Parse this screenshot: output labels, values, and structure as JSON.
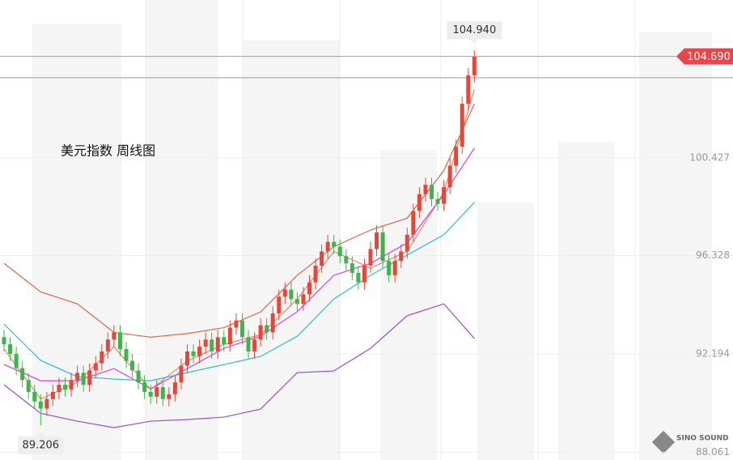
{
  "chart_data": {
    "type": "candlestick",
    "title": "美元指数 周线图",
    "open": [
      92.9,
      92.6,
      92.2,
      91.6,
      91.1,
      90.6,
      90.2,
      89.9,
      90.3,
      90.6,
      90.9,
      90.7,
      91.1,
      91.4,
      90.9,
      91.5,
      91.8,
      92.3,
      92.8,
      93.1,
      92.4,
      91.9,
      91.5,
      91.0,
      90.6,
      90.4,
      90.8,
      90.3,
      90.5,
      91.0,
      91.7,
      92.3,
      92.1,
      92.5,
      92.8,
      92.3,
      92.9,
      92.6,
      93.3,
      93.6,
      92.9,
      92.3,
      92.8,
      93.4,
      93.1,
      93.9,
      94.6,
      94.9,
      94.5,
      94.3,
      94.7,
      95.2,
      95.9,
      96.5,
      96.9,
      96.7,
      96.3,
      96.0,
      95.6,
      95.2,
      95.9,
      96.6,
      97.3,
      96.1,
      95.5,
      96.1,
      96.5,
      97.2,
      98.2,
      98.9,
      99.3,
      98.7,
      98.5,
      99.2,
      100.1,
      100.9,
      102.7,
      103.9
    ],
    "high": [
      93.2,
      92.9,
      92.5,
      91.9,
      91.4,
      90.9,
      90.5,
      90.6,
      90.9,
      91.2,
      91.2,
      91.4,
      91.7,
      91.7,
      91.8,
      92.1,
      92.6,
      93.1,
      93.4,
      93.4,
      92.7,
      92.2,
      91.8,
      91.3,
      90.9,
      91.1,
      91.1,
      90.8,
      91.3,
      92.0,
      92.6,
      92.6,
      92.8,
      93.1,
      93.1,
      93.2,
      93.2,
      93.6,
      93.9,
      93.9,
      93.2,
      93.1,
      93.7,
      93.7,
      94.2,
      94.9,
      95.2,
      95.2,
      94.8,
      95.0,
      95.5,
      96.2,
      96.8,
      97.2,
      97.2,
      97.0,
      96.6,
      96.3,
      95.9,
      96.2,
      96.9,
      97.6,
      97.6,
      96.4,
      96.4,
      96.8,
      97.5,
      98.5,
      99.2,
      99.6,
      99.6,
      99.0,
      99.5,
      100.4,
      101.2,
      103.0,
      104.2,
      104.94
    ],
    "low": [
      92.3,
      91.9,
      91.3,
      90.8,
      90.3,
      89.9,
      89.206,
      89.6,
      90.0,
      90.3,
      90.4,
      90.4,
      90.8,
      90.6,
      90.6,
      91.2,
      91.5,
      92.0,
      92.5,
      92.1,
      91.6,
      91.2,
      90.7,
      90.3,
      90.1,
      90.1,
      90.0,
      90.0,
      90.2,
      90.7,
      91.4,
      91.8,
      91.8,
      92.2,
      92.0,
      92.0,
      92.3,
      92.3,
      93.0,
      92.6,
      92.0,
      92.0,
      92.5,
      92.8,
      92.8,
      93.6,
      94.3,
      94.2,
      94.0,
      94.0,
      94.4,
      94.9,
      95.6,
      96.2,
      96.4,
      96.0,
      95.7,
      95.3,
      94.9,
      94.9,
      95.6,
      96.3,
      95.8,
      95.2,
      95.2,
      95.8,
      96.2,
      96.9,
      97.9,
      98.6,
      98.4,
      98.2,
      98.2,
      98.9,
      99.8,
      100.6,
      102.4,
      103.6
    ],
    "close": [
      92.6,
      92.2,
      91.6,
      91.1,
      90.6,
      90.2,
      89.9,
      90.3,
      90.6,
      90.9,
      90.7,
      91.1,
      91.4,
      90.9,
      91.5,
      91.8,
      92.3,
      92.8,
      93.1,
      92.4,
      91.9,
      91.5,
      91.0,
      90.6,
      90.4,
      90.8,
      90.3,
      90.5,
      91.0,
      91.7,
      92.3,
      92.1,
      92.5,
      92.8,
      92.3,
      92.9,
      92.6,
      93.3,
      93.6,
      92.9,
      92.3,
      92.8,
      93.4,
      93.1,
      93.9,
      94.6,
      94.9,
      94.5,
      94.3,
      94.7,
      95.2,
      95.9,
      96.5,
      96.9,
      96.7,
      96.3,
      96.0,
      95.6,
      95.2,
      95.9,
      96.6,
      97.3,
      96.1,
      95.5,
      96.1,
      96.5,
      97.2,
      98.2,
      98.9,
      99.3,
      98.7,
      98.5,
      99.2,
      100.1,
      100.9,
      102.7,
      103.9,
      104.69
    ],
    "up_color": "#e5483a",
    "down_color": "#3db54a",
    "lines": [
      {
        "color": "#d9674a",
        "x": [
          0,
          6,
          12,
          18,
          24,
          30,
          36,
          42,
          48,
          54,
          60,
          66,
          72,
          77
        ],
        "values": [
          96.0,
          94.8,
          94.3,
          93.1,
          92.9,
          93.05,
          93.3,
          93.96,
          95.5,
          96.7,
          97.4,
          97.9,
          99.9,
          102.7
        ]
      },
      {
        "color": "#f0856a",
        "x": [
          0,
          6,
          12,
          18,
          24,
          30,
          36,
          42,
          48,
          54,
          60,
          66,
          72,
          77
        ],
        "values": [
          92.4,
          90.3,
          91.0,
          92.5,
          90.7,
          91.9,
          92.6,
          93.0,
          94.5,
          96.5,
          95.8,
          96.5,
          99.0,
          103.3
        ]
      },
      {
        "color": "#e040c8",
        "x": [
          0,
          6,
          12,
          18,
          24,
          30,
          36,
          42,
          48,
          54,
          60,
          66,
          72,
          77
        ],
        "values": [
          91.75,
          91.07,
          91.07,
          91.58,
          90.73,
          91.58,
          92.43,
          92.94,
          93.97,
          95.5,
          96.0,
          96.86,
          98.9,
          100.84
        ]
      },
      {
        "color": "#2bbcd8",
        "x": [
          0,
          6,
          12,
          18,
          24,
          30,
          36,
          42,
          48,
          54,
          60,
          66,
          72,
          77
        ],
        "values": [
          93.45,
          91.92,
          91.24,
          91.14,
          91.07,
          91.41,
          91.75,
          92.09,
          92.94,
          94.5,
          95.5,
          96.35,
          97.2,
          98.56
        ]
      },
      {
        "color": "#9b4fd0",
        "x": [
          0,
          6,
          12,
          18,
          24,
          30,
          36,
          42,
          48,
          54,
          60,
          66,
          72,
          77
        ],
        "values": [
          90.9,
          89.7,
          89.37,
          89.1,
          89.37,
          89.44,
          89.54,
          89.88,
          91.41,
          91.48,
          92.43,
          93.8,
          94.3,
          92.84
        ]
      }
    ],
    "ylim": [
      87.74,
      107.06
    ],
    "yticks": [
      100.427,
      96.328,
      92.194,
      88.061
    ],
    "high_label": {
      "value": 104.94,
      "label": "104.940"
    },
    "low_label": 89.206,
    "last_price": {
      "value": 104.69,
      "label": "104.690"
    },
    "watermark": "SINO SOUND"
  }
}
